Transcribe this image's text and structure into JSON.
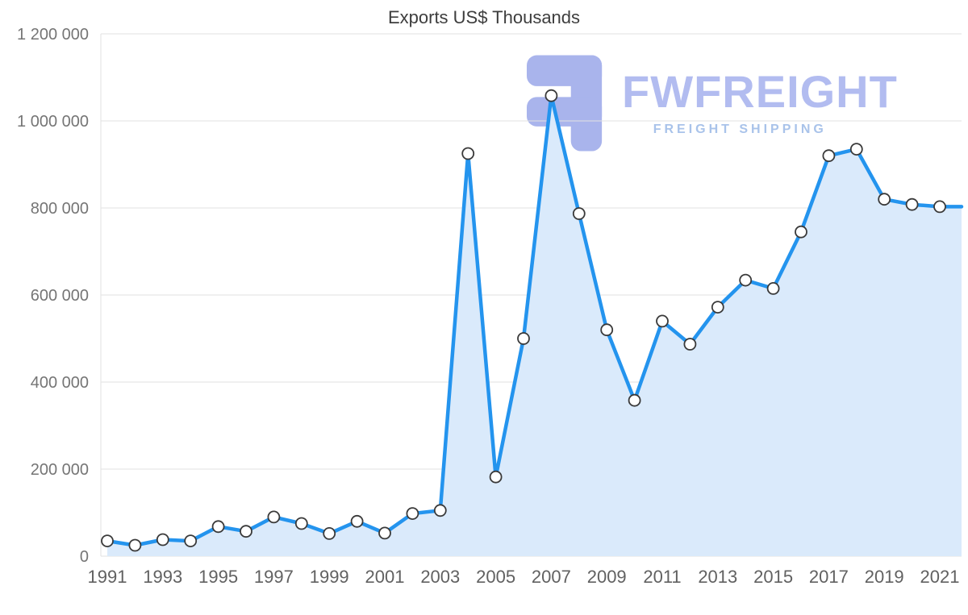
{
  "chart_data": {
    "type": "area",
    "title": "Exports US$ Thousands",
    "x": [
      1991,
      1992,
      1993,
      1994,
      1995,
      1996,
      1997,
      1998,
      1999,
      2000,
      2001,
      2002,
      2003,
      2004,
      2005,
      2006,
      2007,
      2008,
      2009,
      2010,
      2011,
      2012,
      2013,
      2014,
      2015,
      2016,
      2017,
      2018,
      2019,
      2020,
      2021
    ],
    "values": [
      35000,
      25000,
      38000,
      35000,
      68000,
      57000,
      90000,
      75000,
      52000,
      80000,
      53000,
      98000,
      105000,
      925000,
      182000,
      500000,
      1058000,
      787000,
      520000,
      358000,
      540000,
      487000,
      572000,
      634000,
      615000,
      745000,
      920000,
      935000,
      820000,
      808000,
      803000
    ],
    "ylim": [
      0,
      1200000
    ],
    "y_ticks": [
      {
        "value": 0,
        "label": "0"
      },
      {
        "value": 200000,
        "label": "200 000"
      },
      {
        "value": 400000,
        "label": "400 000"
      },
      {
        "value": 600000,
        "label": "600 000"
      },
      {
        "value": 800000,
        "label": "800 000"
      },
      {
        "value": 1000000,
        "label": "1 000 000"
      },
      {
        "value": 1200000,
        "label": "1 200 000"
      }
    ],
    "x_tick_years": [
      1991,
      1993,
      1995,
      1997,
      1999,
      2001,
      2003,
      2005,
      2007,
      2009,
      2011,
      2013,
      2015,
      2017,
      2019,
      2021
    ],
    "grid": "horizontal",
    "legend": "none",
    "line_color": "#2494ee",
    "fill_color": "#daeafb",
    "marker_fill": "#ffffff",
    "marker_stroke": "#3a3a3a",
    "grid_color": "#e2e2e2",
    "axis_label_color": "#757575"
  },
  "watermark": {
    "brand": "FWFREIGHT",
    "tagline": "FREIGHT SHIPPING"
  }
}
